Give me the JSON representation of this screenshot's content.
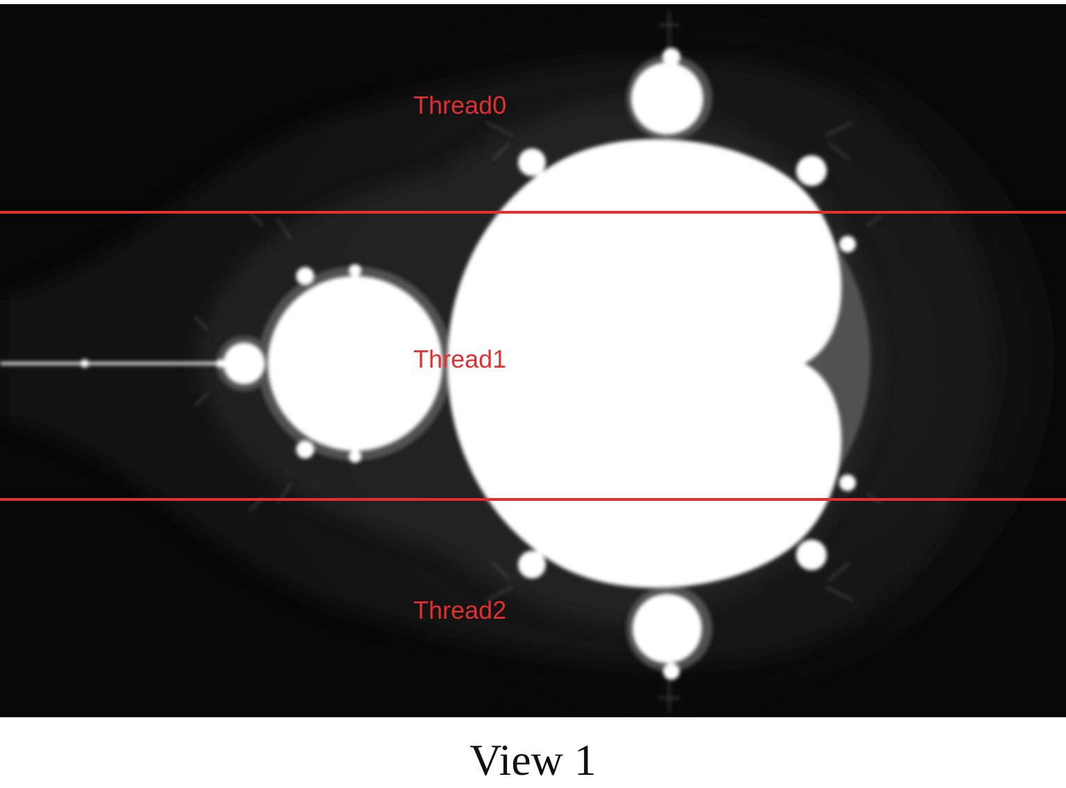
{
  "figure": {
    "caption": "View 1",
    "image": "mandelbrot-set-grayscale",
    "colors": {
      "background": "#070707",
      "set": "#ffffff",
      "divider": "#e03030",
      "label": "#e03030",
      "caption": "#111111"
    },
    "threads": [
      {
        "label": "Thread0"
      },
      {
        "label": "Thread1"
      },
      {
        "label": "Thread2"
      }
    ],
    "divider_count": 2
  }
}
